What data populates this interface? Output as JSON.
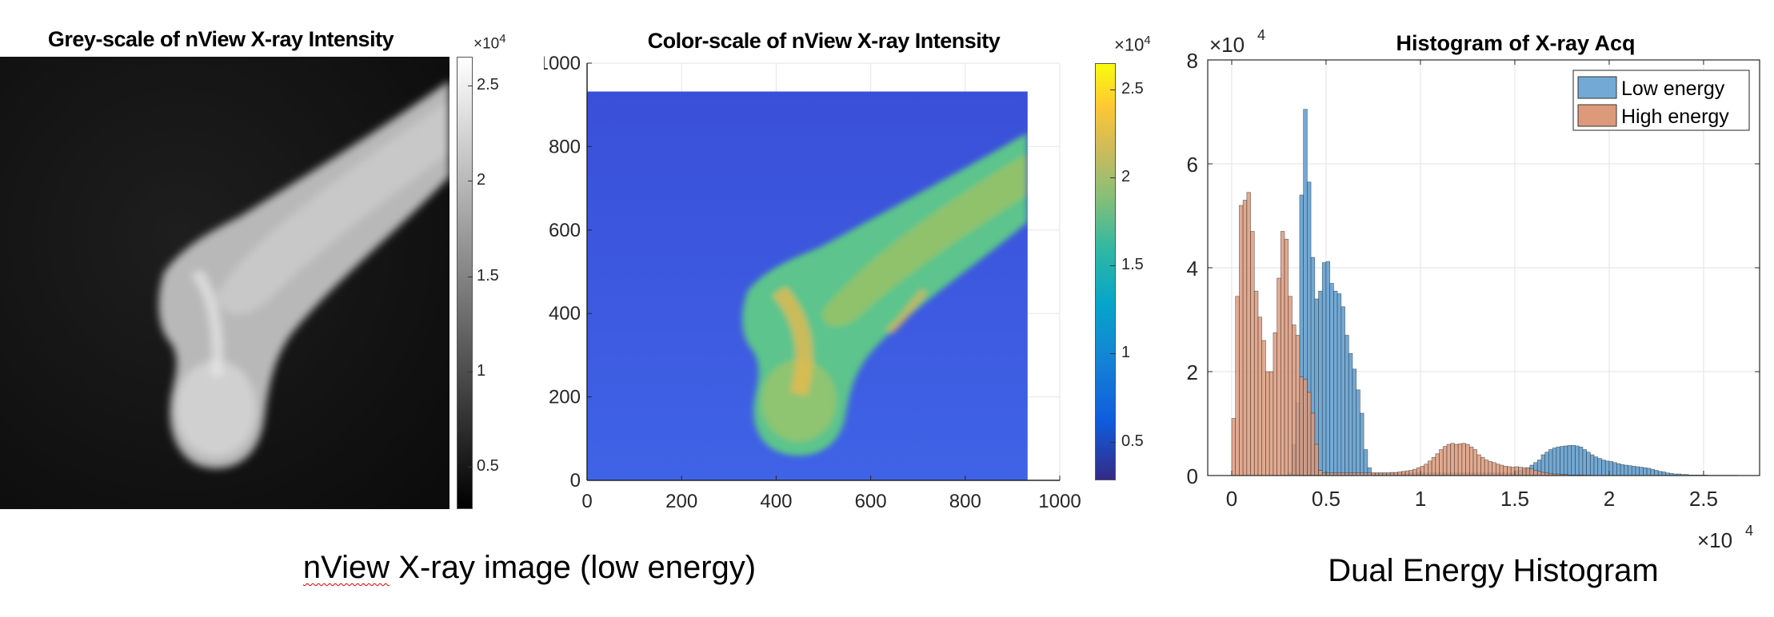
{
  "captions": {
    "left": "nView X-ray image (low energy)",
    "left_underlined": "nView",
    "left_rest": " X-ray image (low energy)",
    "right": "Dual Energy Histogram"
  },
  "colors": {
    "low_energy": "#72a9d5",
    "high_energy": "#dd9a7b",
    "parula": [
      "#352a87",
      "#0f5cdd",
      "#1481d6",
      "#06a4ca",
      "#2eb7a4",
      "#87bf77",
      "#d1bb59",
      "#fec832",
      "#f9fb0e"
    ]
  },
  "chart_data": [
    {
      "type": "heatmap",
      "title": "Grey-scale of nView X-ray Intensity",
      "colormap": "gray",
      "colorbar": {
        "multiplier": "×10",
        "exponent": "4",
        "clim": [
          0.28,
          2.65
        ],
        "ticks": [
          0.5,
          1,
          1.5,
          2,
          2.5
        ],
        "tick_labels": [
          "0.5",
          "1",
          "1.5",
          "2",
          "2.5"
        ]
      },
      "axes_visible": false
    },
    {
      "type": "heatmap",
      "title": "Color-scale of nView X-ray Intensity",
      "colormap": "parula",
      "xlim": [
        0,
        1000
      ],
      "ylim": [
        0,
        1000
      ],
      "image_extent": [
        0,
        932
      ],
      "xticks": [
        0,
        200,
        400,
        600,
        800,
        1000
      ],
      "xtick_labels": [
        "0",
        "200",
        "400",
        "600",
        "800",
        "1000"
      ],
      "yticks": [
        0,
        200,
        400,
        600,
        800,
        1000
      ],
      "ytick_labels": [
        "0",
        "200",
        "400",
        "600",
        "800",
        "1000"
      ],
      "grid": true,
      "colorbar": {
        "multiplier": "×10",
        "exponent": "4",
        "clim": [
          0.28,
          2.65
        ],
        "ticks": [
          0.5,
          1,
          1.5,
          2,
          2.5
        ],
        "tick_labels": [
          "0.5",
          "1",
          "1.5",
          "2",
          "2.5"
        ]
      }
    },
    {
      "type": "bar",
      "title": "Histogram of X-ray Acq",
      "xlabel": "",
      "ylabel": "",
      "xlim": [
        -1270,
        27970
      ],
      "ylim": [
        0,
        80000
      ],
      "xticks": [
        0,
        5000,
        10000,
        15000,
        20000,
        25000
      ],
      "xtick_labels": [
        "0",
        "0.5",
        "1",
        "1.5",
        "2",
        "2.5"
      ],
      "yticks": [
        0,
        20000,
        40000,
        60000,
        80000
      ],
      "ytick_labels": [
        "0",
        "2",
        "4",
        "6",
        "8"
      ],
      "x_multiplier": {
        "base": "×10",
        "exponent": "4"
      },
      "y_multiplier": {
        "base": "×10",
        "exponent": "4"
      },
      "grid": true,
      "legend": {
        "placement": "top-right",
        "entries": [
          "Low energy",
          "High energy"
        ]
      },
      "bin_start": 0,
      "bin_width": 200,
      "value_scale": 10000,
      "series": [
        {
          "name": "Low energy",
          "values": [
            0,
            0,
            0,
            0,
            0,
            0,
            0,
            0,
            0,
            0,
            0,
            0,
            0,
            0,
            0,
            0.05,
            0.6,
            1.4,
            5.4,
            7.05,
            5.65,
            4.2,
            3.4,
            3.55,
            4.1,
            4.12,
            3.7,
            3.55,
            3.5,
            3.25,
            2.7,
            2.35,
            2.05,
            1.65,
            1.2,
            0.5,
            0.15,
            0.05,
            0.05,
            0.05,
            0.05,
            0.05,
            0.05,
            0.05,
            0.05,
            0.05,
            0.05,
            0.05,
            0.05,
            0.05,
            0.05,
            0.05,
            0.05,
            0.05,
            0.05,
            0.05,
            0.05,
            0.05,
            0.05,
            0.05,
            0.05,
            0.05,
            0.05,
            0.05,
            0.05,
            0.05,
            0.05,
            0.05,
            0.05,
            0.05,
            0.05,
            0.05,
            0.05,
            0.05,
            0.05,
            0.08,
            0.1,
            0.12,
            0.15,
            0.2,
            0.25,
            0.3,
            0.4,
            0.45,
            0.5,
            0.53,
            0.55,
            0.56,
            0.57,
            0.58,
            0.58,
            0.57,
            0.55,
            0.5,
            0.45,
            0.4,
            0.36,
            0.33,
            0.3,
            0.28,
            0.27,
            0.25,
            0.23,
            0.21,
            0.2,
            0.19,
            0.18,
            0.17,
            0.16,
            0.15,
            0.14,
            0.12,
            0.1,
            0.08,
            0.07,
            0.05,
            0.04,
            0.03,
            0.03,
            0.02,
            0.02,
            0.01,
            0.01,
            0.01,
            0.01,
            0.01,
            0.005,
            0.005,
            0.005,
            0.005,
            0.005,
            0.005,
            0.005,
            0.005
          ]
        },
        {
          "name": "High energy",
          "values": [
            1.1,
            3.45,
            5.2,
            5.3,
            5.45,
            4.7,
            3.55,
            3.05,
            2.6,
            2.0,
            2.0,
            2.75,
            3.8,
            4.7,
            4.55,
            3.45,
            2.9,
            2.7,
            1.9,
            1.85,
            1.6,
            1.2,
            0.6,
            0.1,
            0.05,
            0.05,
            0.05,
            0.05,
            0.05,
            0.05,
            0.05,
            0.05,
            0.05,
            0.05,
            0.05,
            0.05,
            0.05,
            0.05,
            0.05,
            0.05,
            0.05,
            0.05,
            0.06,
            0.06,
            0.07,
            0.08,
            0.09,
            0.1,
            0.12,
            0.15,
            0.18,
            0.22,
            0.28,
            0.35,
            0.42,
            0.5,
            0.56,
            0.6,
            0.62,
            0.6,
            0.61,
            0.62,
            0.6,
            0.55,
            0.5,
            0.4,
            0.35,
            0.3,
            0.27,
            0.25,
            0.22,
            0.2,
            0.18,
            0.17,
            0.16,
            0.17,
            0.16,
            0.15,
            0.15,
            0.13,
            0.1,
            0.08,
            0.06,
            0.05,
            0.04,
            0.03,
            0.03,
            0.02,
            0.02,
            0.01,
            0.01,
            0.01,
            0.01,
            0.005,
            0.005
          ]
        }
      ]
    }
  ]
}
